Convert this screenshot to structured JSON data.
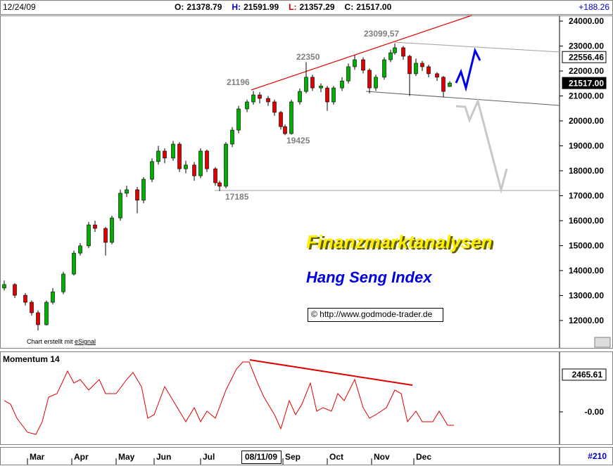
{
  "header": {
    "date": "12/24/09",
    "items": [
      {
        "key": "O:",
        "value": "21378.79",
        "color": "#000000"
      },
      {
        "key": "H:",
        "value": "21591.99",
        "color": "#0000cc"
      },
      {
        "key": "L:",
        "value": "21357.29",
        "color": "#cc0000"
      },
      {
        "key": "C:",
        "value": "21517.00",
        "color": "#000000"
      }
    ],
    "change": "+188.26"
  },
  "texts": {
    "brand": "Finanzmarktanalysen",
    "index": "Hang Seng Index",
    "url": "© http://www.godmode-trader.de",
    "credit": "Chart erstellt mit ",
    "credit_link": "eSignal",
    "bar_count": "#210",
    "cursor_date": "08/11/09"
  },
  "annotations": [
    "21196",
    "22350",
    "23099,57",
    "19425",
    "17185"
  ],
  "chart_data": [
    {
      "type": "candlestick",
      "up_color": "#00b000",
      "down_color": "#e00000",
      "xlim": [
        0,
        265
      ],
      "ylim": [
        10900,
        24225
      ],
      "yticks": [
        {
          "value": 12000,
          "label": "12000.00"
        },
        {
          "value": 13000,
          "label": "13000.00"
        },
        {
          "value": 14000,
          "label": "14000.00"
        },
        {
          "value": 15000,
          "label": "15000.00"
        },
        {
          "value": 16000,
          "label": "16000.00"
        },
        {
          "value": 17000,
          "label": "17000.00"
        },
        {
          "value": 18000,
          "label": "18000.00"
        },
        {
          "value": 19000,
          "label": "19000.00"
        },
        {
          "value": 20000,
          "label": "20000.00"
        },
        {
          "value": 21000,
          "label": "21000.00"
        },
        {
          "value": 22000,
          "label": "22000.00"
        },
        {
          "value": 23000,
          "label": "23000.00"
        },
        {
          "value": 24000,
          "label": "24000.00"
        }
      ],
      "markers": [
        {
          "value": 22556.46,
          "label": "22556.46"
        },
        {
          "value": 21517,
          "label": "21517.00"
        }
      ],
      "xticks": [
        {
          "value": 13,
          "label": "Mar"
        },
        {
          "value": 34,
          "label": "Apr"
        },
        {
          "value": 55,
          "label": "May"
        },
        {
          "value": 73,
          "label": "Jun"
        },
        {
          "value": 95,
          "label": "Jul"
        },
        {
          "value": 134,
          "label": "Sep"
        },
        {
          "value": 155,
          "label": "Oct"
        },
        {
          "value": 176,
          "label": "Nov"
        },
        {
          "value": 196,
          "label": "Dec"
        }
      ],
      "x": [
        2,
        7,
        12,
        15,
        18,
        22,
        25,
        30,
        35,
        38,
        42,
        45,
        50,
        53,
        57,
        60,
        65,
        68,
        72,
        75,
        78,
        82,
        85,
        88,
        92,
        95,
        98,
        102,
        104,
        107,
        110,
        113,
        117,
        120,
        123,
        127,
        130,
        133,
        135,
        138,
        142,
        145,
        148,
        152,
        155,
        158,
        162,
        165,
        168,
        172,
        175,
        178,
        182,
        185,
        187,
        191,
        194,
        197,
        200,
        203,
        207,
        210,
        213
      ],
      "open": [
        13300,
        13440,
        13010,
        12730,
        12310,
        11830,
        12730,
        13150,
        13860,
        14700,
        14990,
        15830,
        15690,
        15130,
        16110,
        17100,
        17240,
        16820,
        17660,
        18370,
        18790,
        18510,
        19070,
        18080,
        18230,
        17800,
        18790,
        18080,
        17520,
        17380,
        19070,
        19630,
        20480,
        20760,
        21040,
        20900,
        20760,
        20340,
        19770,
        19490,
        20760,
        21180,
        21750,
        21320,
        21320,
        20760,
        21320,
        21600,
        22170,
        22450,
        22030,
        21320,
        21750,
        22450,
        22730,
        22930,
        22590,
        21890,
        22310,
        22170,
        21890,
        21750,
        21378.79
      ],
      "high": [
        13600,
        13500,
        13100,
        12800,
        12400,
        12800,
        13300,
        13950,
        14800,
        15100,
        15950,
        16000,
        15750,
        16200,
        17250,
        17400,
        17350,
        17750,
        18500,
        19000,
        18900,
        19200,
        19150,
        18400,
        18350,
        18900,
        18850,
        18150,
        17600,
        19150,
        19750,
        20600,
        20850,
        21196,
        21150,
        21000,
        20850,
        20400,
        19850,
        20850,
        21300,
        22350,
        21850,
        21500,
        21400,
        21400,
        21750,
        22300,
        22650,
        22550,
        22100,
        21850,
        22550,
        22850,
        23099.57,
        23000,
        22650,
        22500,
        22400,
        22250,
        21950,
        21800,
        21591.99
      ],
      "low": [
        13200,
        12900,
        12600,
        12200,
        11600,
        11800,
        12650,
        13050,
        13800,
        14600,
        14900,
        15550,
        14600,
        15050,
        16000,
        16950,
        16300,
        16700,
        17550,
        18250,
        18300,
        18400,
        17950,
        17900,
        17600,
        17700,
        17950,
        17400,
        17185,
        17300,
        18950,
        19500,
        20350,
        20650,
        20700,
        20600,
        20200,
        19650,
        19425,
        19450,
        20650,
        21100,
        21200,
        21150,
        20400,
        20650,
        21200,
        21500,
        22050,
        21900,
        21100,
        21200,
        21650,
        22350,
        22650,
        22450,
        21000,
        21800,
        22000,
        21750,
        21600,
        20950,
        21357.29
      ],
      "close": [
        13440,
        13010,
        12730,
        12310,
        11830,
        12730,
        13150,
        13860,
        14700,
        14990,
        15830,
        15690,
        15130,
        16110,
        17100,
        17240,
        16820,
        17660,
        18370,
        18790,
        18510,
        19070,
        18080,
        18230,
        17800,
        18790,
        18080,
        17520,
        17380,
        19070,
        19630,
        20480,
        20760,
        21040,
        20900,
        20760,
        20340,
        19770,
        19490,
        20760,
        21180,
        21750,
        21320,
        21400,
        20760,
        21320,
        21600,
        22170,
        22450,
        22030,
        21320,
        21750,
        22450,
        22730,
        22930,
        22590,
        21890,
        22310,
        22170,
        21890,
        21750,
        21180,
        21517
      ]
    },
    {
      "type": "line",
      "title": "Momentum 14",
      "color": "#e00000",
      "xlim": [
        0,
        265
      ],
      "ylim": [
        -2140,
        4000
      ],
      "yticks": [
        {
          "value": 0,
          "label": "-0.00"
        }
      ],
      "marker": {
        "value": 2465.61,
        "label": "2465.61"
      },
      "x": [
        2,
        5,
        8,
        13,
        17,
        20,
        23,
        27,
        32,
        35,
        38,
        42,
        47,
        50,
        55,
        60,
        63,
        67,
        70,
        73,
        78,
        83,
        88,
        92,
        95,
        98,
        102,
        107,
        112,
        115,
        118,
        122,
        125,
        130,
        133,
        137,
        140,
        143,
        147,
        150,
        153,
        157,
        160,
        163,
        168,
        172,
        175,
        178,
        183,
        187,
        190,
        193,
        197,
        200,
        205,
        208,
        212,
        215
      ],
      "values": [
        744,
        512,
        -419,
        -1349,
        -1488,
        -651,
        977,
        1209,
        2697,
        1907,
        2139,
        1442,
        2139,
        1209,
        1209,
        2139,
        2604,
        1674,
        -419,
        -186,
        1674,
        512,
        -651,
        279,
        -651,
        47,
        -419,
        1442,
        2837,
        3302,
        3302,
        1907,
        977,
        -186,
        -1116,
        744,
        -186,
        512,
        1907,
        47,
        279,
        47,
        1209,
        744,
        2139,
        279,
        -419,
        -186,
        279,
        1442,
        1209,
        -651,
        47,
        -651,
        -651,
        47,
        -884,
        -884
      ]
    }
  ]
}
